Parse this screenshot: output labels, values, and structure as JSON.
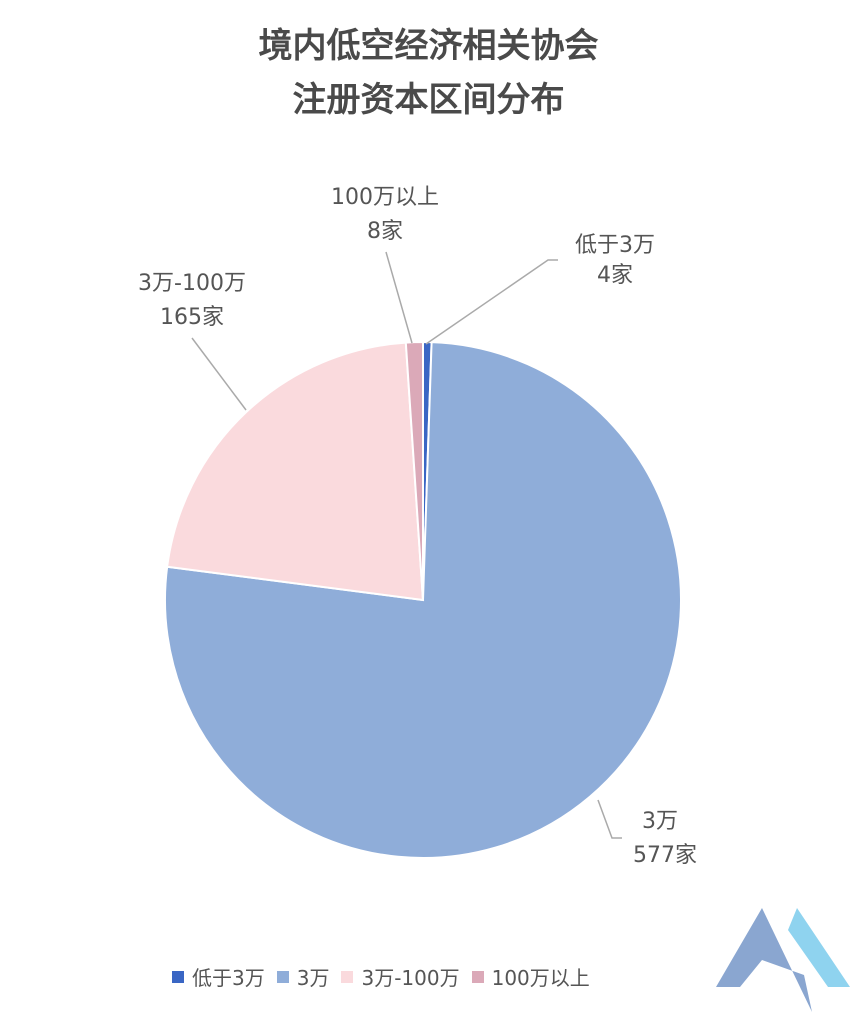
{
  "chart_data": {
    "type": "pie",
    "title": [
      "境内低空经济相关协会",
      "注册资本区间分布"
    ],
    "slices": [
      {
        "label": "低于3万",
        "value": 4,
        "value_label": "4家",
        "color": "#3a66c4"
      },
      {
        "label": "3万",
        "value": 577,
        "value_label": "577家",
        "color": "#8fadd9"
      },
      {
        "label": "3万-100万",
        "value": 165,
        "value_label": "165家",
        "color": "#fadadd"
      },
      {
        "label": "100万以上",
        "value": 8,
        "value_label": "8家",
        "color": "#dba9b8"
      }
    ],
    "start_angle": "top",
    "direction": "clockwise",
    "legend_position": "bottom"
  },
  "logo": {
    "colors": [
      "#8aa6d0",
      "#8fd3ef"
    ]
  }
}
